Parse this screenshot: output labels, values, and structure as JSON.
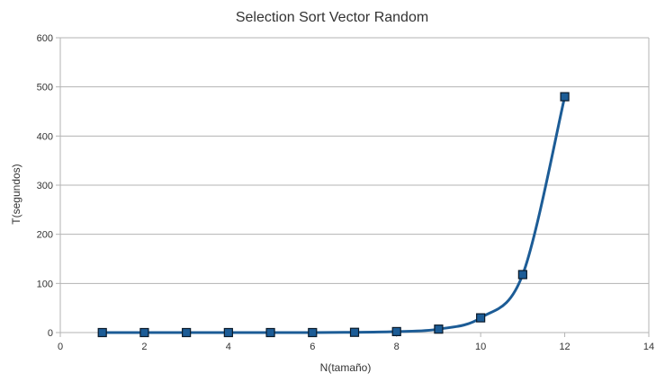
{
  "chart_data": {
    "type": "scatter",
    "title": "Selection Sort Vector Random",
    "xlabel": "N(tamaño)",
    "ylabel": "T(segundos)",
    "xlim": [
      0,
      14
    ],
    "ylim": [
      0,
      600
    ],
    "x_ticks": [
      "0",
      "2",
      "4",
      "6",
      "8",
      "10",
      "12",
      "14"
    ],
    "y_ticks": [
      "0",
      "100",
      "200",
      "300",
      "400",
      "500",
      "600"
    ],
    "grid": "horizontal",
    "smoothed_line": true,
    "series": [
      {
        "x": [
          1,
          2,
          3,
          4,
          5,
          6,
          7,
          8,
          9,
          10,
          11,
          12
        ],
        "y": [
          0,
          0,
          0,
          0,
          0,
          0,
          0.5,
          2,
          7,
          30,
          118,
          480
        ]
      }
    ],
    "colors": {
      "line": "#1c5c96",
      "marker_fill": "#1c5c96",
      "marker_stroke": "#0a1a2a",
      "grid": "#b3b3b3",
      "axis": "#b3b3b3"
    }
  }
}
